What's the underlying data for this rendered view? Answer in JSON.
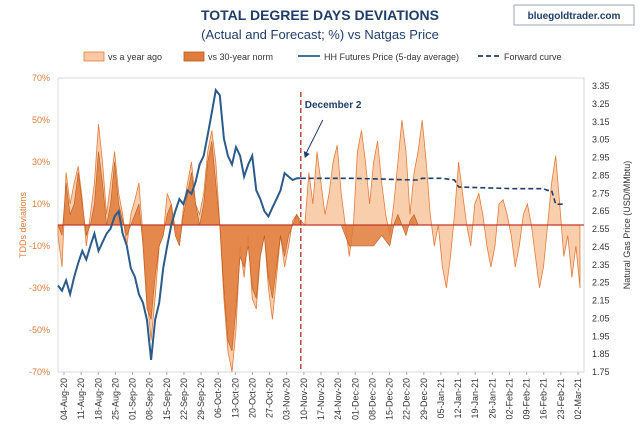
{
  "brand": "bluegoldtrader.com",
  "chart_data": {
    "type": "area",
    "title": "TOTAL DEGREE DAYS DEVIATIONS",
    "subtitle": "(Actual and Forecast; %) vs Natgas Price",
    "ylabel": "TDDs deviations",
    "y2label": "Natural Gas Price (USD/MMbtu)",
    "ylim": [
      -0.7,
      0.7
    ],
    "y2lim": [
      1.75,
      3.45
    ],
    "y_ticks": [
      "70%",
      "50%",
      "30%",
      "10%",
      "-10%",
      "-30%",
      "-50%",
      "-70%"
    ],
    "y2_ticks": [
      "3.35",
      "3.25",
      "3.15",
      "3.05",
      "2.95",
      "2.85",
      "2.75",
      "2.65",
      "2.55",
      "2.45",
      "2.35",
      "2.25",
      "2.15",
      "2.05",
      "1.95",
      "1.85",
      "1.75"
    ],
    "x_ticks": [
      "04-Aug-20",
      "11-Aug-20",
      "18-Aug-20",
      "25-Aug-20",
      "01-Sep-20",
      "08-Sep-20",
      "15-Sep-20",
      "22-Sep-20",
      "29-Sep-20",
      "06-Oct-20",
      "13-Oct-20",
      "20-Oct-20",
      "27-Oct-20",
      "03-Nov-20",
      "10-Nov-20",
      "17-Nov-20",
      "24-Nov-20",
      "01-Dec-20",
      "08-Dec-20",
      "15-Dec-20",
      "22-Dec-20",
      "29-Dec-20",
      "05-Jan-21",
      "12-Jan-21",
      "19-Jan-21",
      "26-Jan-21",
      "02-Feb-21",
      "09-Feb-21",
      "16-Feb-21",
      "23-Feb-21",
      "02-Mar-21"
    ],
    "legend": [
      "vs a year ago",
      "vs 30-year norm",
      "HH Futures Price (5-day average)",
      "Forward curve"
    ],
    "legend_position": "top",
    "annotation": {
      "text": "December 2",
      "x": 120
    },
    "colors": {
      "year_ago": "#f8c9a4",
      "year_ago_edge": "#e07b39",
      "norm": "#e07b39",
      "norm_edge": "#b85a1f",
      "price": "#2b5b8a",
      "forward": "#1f3d68",
      "zero": "#c0392b",
      "marker": "#c0392b"
    },
    "series": [
      {
        "name": "vs a year ago",
        "points": [
          [
            0,
            -0.05
          ],
          [
            2,
            -0.2
          ],
          [
            4,
            0.25
          ],
          [
            6,
            0.1
          ],
          [
            8,
            0.2
          ],
          [
            10,
            0.28
          ],
          [
            12,
            0.12
          ],
          [
            14,
            -0.1
          ],
          [
            16,
            0.05
          ],
          [
            18,
            0.2
          ],
          [
            20,
            0.48
          ],
          [
            22,
            0.3
          ],
          [
            24,
            0.05
          ],
          [
            26,
            0.2
          ],
          [
            28,
            0.35
          ],
          [
            30,
            0.15
          ],
          [
            32,
            0.05
          ],
          [
            34,
            -0.1
          ],
          [
            36,
            0.05
          ],
          [
            38,
            0.12
          ],
          [
            40,
            0.2
          ],
          [
            42,
            -0.05
          ],
          [
            44,
            -0.35
          ],
          [
            46,
            -0.55
          ],
          [
            48,
            -0.35
          ],
          [
            50,
            -0.1
          ],
          [
            52,
            -0.05
          ],
          [
            54,
            0.15
          ],
          [
            56,
            0.1
          ],
          [
            58,
            -0.02
          ],
          [
            60,
            -0.08
          ],
          [
            62,
            0.08
          ],
          [
            64,
            0.2
          ],
          [
            66,
            0.3
          ],
          [
            68,
            0.1
          ],
          [
            70,
            0.05
          ],
          [
            72,
            0.15
          ],
          [
            74,
            0.35
          ],
          [
            76,
            0.45
          ],
          [
            78,
            0.3
          ],
          [
            80,
            0.0
          ],
          [
            82,
            -0.35
          ],
          [
            84,
            -0.6
          ],
          [
            86,
            -0.7
          ],
          [
            88,
            -0.5
          ],
          [
            90,
            -0.1
          ],
          [
            92,
            -0.25
          ],
          [
            94,
            -0.05
          ],
          [
            96,
            -0.35
          ],
          [
            98,
            -0.4
          ],
          [
            100,
            -0.15
          ],
          [
            102,
            -0.05
          ],
          [
            104,
            -0.3
          ],
          [
            106,
            -0.45
          ],
          [
            108,
            -0.25
          ],
          [
            110,
            -0.05
          ],
          [
            112,
            -0.2
          ],
          [
            114,
            -0.1
          ],
          [
            116,
            0.02
          ],
          [
            118,
            0.05
          ],
          [
            120,
            0.02
          ],
          [
            122,
            0.0
          ],
          [
            124,
            0.25
          ],
          [
            126,
            0.1
          ],
          [
            128,
            0.35
          ],
          [
            130,
            0.2
          ],
          [
            132,
            0.05
          ],
          [
            134,
            0.15
          ],
          [
            136,
            0.3
          ],
          [
            138,
            0.38
          ],
          [
            140,
            0.15
          ],
          [
            142,
            0.0
          ],
          [
            144,
            -0.15
          ],
          [
            146,
            0.0
          ],
          [
            148,
            0.35
          ],
          [
            150,
            0.45
          ],
          [
            152,
            0.3
          ],
          [
            154,
            0.1
          ],
          [
            156,
            0.3
          ],
          [
            158,
            0.4
          ],
          [
            160,
            0.2
          ],
          [
            162,
            0.05
          ],
          [
            164,
            -0.05
          ],
          [
            166,
            0.1
          ],
          [
            168,
            0.3
          ],
          [
            170,
            0.5
          ],
          [
            172,
            0.35
          ],
          [
            174,
            0.05
          ],
          [
            176,
            0.25
          ],
          [
            178,
            0.35
          ],
          [
            180,
            0.5
          ],
          [
            182,
            0.3
          ],
          [
            184,
            0.05
          ],
          [
            186,
            -0.1
          ],
          [
            188,
            0.0
          ],
          [
            190,
            -0.2
          ],
          [
            192,
            -0.3
          ],
          [
            194,
            -0.15
          ],
          [
            196,
            0.05
          ],
          [
            198,
            0.3
          ],
          [
            200,
            0.15
          ],
          [
            202,
            0.0
          ],
          [
            204,
            -0.1
          ],
          [
            206,
            0.1
          ],
          [
            208,
            0.15
          ],
          [
            210,
            0.05
          ],
          [
            212,
            -0.1
          ],
          [
            214,
            -0.2
          ],
          [
            216,
            -0.1
          ],
          [
            218,
            0.1
          ],
          [
            220,
            0.12
          ],
          [
            222,
            0.05
          ],
          [
            224,
            -0.05
          ],
          [
            226,
            -0.2
          ],
          [
            228,
            -0.1
          ],
          [
            230,
            0.05
          ],
          [
            232,
            0.1
          ],
          [
            234,
            0.0
          ],
          [
            236,
            -0.15
          ],
          [
            238,
            -0.3
          ],
          [
            240,
            -0.2
          ],
          [
            242,
            0.0
          ],
          [
            244,
            0.2
          ],
          [
            246,
            0.33
          ],
          [
            248,
            0.1
          ],
          [
            250,
            -0.15
          ],
          [
            252,
            -0.05
          ],
          [
            254,
            -0.25
          ],
          [
            256,
            -0.1
          ],
          [
            258,
            -0.3
          ]
        ]
      },
      {
        "name": "vs 30-year norm",
        "points": [
          [
            0,
            0.0
          ],
          [
            2,
            -0.05
          ],
          [
            4,
            0.2
          ],
          [
            6,
            0.05
          ],
          [
            8,
            0.1
          ],
          [
            10,
            0.25
          ],
          [
            12,
            0.1
          ],
          [
            14,
            -0.05
          ],
          [
            16,
            0.0
          ],
          [
            18,
            0.1
          ],
          [
            20,
            0.35
          ],
          [
            22,
            0.2
          ],
          [
            24,
            0.0
          ],
          [
            26,
            0.1
          ],
          [
            28,
            0.3
          ],
          [
            30,
            0.1
          ],
          [
            32,
            0.02
          ],
          [
            34,
            -0.05
          ],
          [
            36,
            0.0
          ],
          [
            38,
            0.05
          ],
          [
            40,
            0.1
          ],
          [
            42,
            -0.1
          ],
          [
            44,
            -0.4
          ],
          [
            46,
            -0.45
          ],
          [
            48,
            -0.25
          ],
          [
            50,
            -0.1
          ],
          [
            52,
            -0.05
          ],
          [
            54,
            0.05
          ],
          [
            56,
            0.1
          ],
          [
            58,
            -0.05
          ],
          [
            60,
            -0.1
          ],
          [
            62,
            0.05
          ],
          [
            64,
            0.15
          ],
          [
            66,
            0.25
          ],
          [
            68,
            0.1
          ],
          [
            70,
            0.0
          ],
          [
            72,
            0.1
          ],
          [
            74,
            0.3
          ],
          [
            76,
            0.4
          ],
          [
            78,
            0.2
          ],
          [
            80,
            0.0
          ],
          [
            82,
            -0.3
          ],
          [
            84,
            -0.55
          ],
          [
            86,
            -0.6
          ],
          [
            88,
            -0.4
          ],
          [
            90,
            -0.15
          ],
          [
            92,
            -0.2
          ],
          [
            94,
            -0.1
          ],
          [
            96,
            -0.3
          ],
          [
            98,
            -0.35
          ],
          [
            100,
            -0.15
          ],
          [
            102,
            -0.05
          ],
          [
            104,
            -0.25
          ],
          [
            106,
            -0.35
          ],
          [
            108,
            -0.2
          ],
          [
            110,
            -0.05
          ],
          [
            112,
            -0.15
          ],
          [
            114,
            -0.05
          ],
          [
            116,
            0.0
          ],
          [
            118,
            0.05
          ],
          [
            120,
            0.0
          ],
          [
            140,
            0.0
          ],
          [
            144,
            -0.1
          ],
          [
            146,
            -0.1
          ],
          [
            150,
            -0.1
          ],
          [
            156,
            -0.1
          ],
          [
            160,
            -0.05
          ],
          [
            164,
            -0.1
          ],
          [
            166,
            0.0
          ],
          [
            168,
            0.05
          ],
          [
            170,
            0.0
          ],
          [
            172,
            -0.05
          ],
          [
            174,
            0.02
          ],
          [
            176,
            0.05
          ],
          [
            178,
            0.0
          ]
        ]
      },
      {
        "name": "HH Futures Price (5-day average)",
        "points": [
          [
            0,
            2.25
          ],
          [
            2,
            2.22
          ],
          [
            4,
            2.28
          ],
          [
            6,
            2.2
          ],
          [
            8,
            2.3
          ],
          [
            10,
            2.38
          ],
          [
            12,
            2.45
          ],
          [
            14,
            2.4
          ],
          [
            16,
            2.48
          ],
          [
            18,
            2.55
          ],
          [
            20,
            2.45
          ],
          [
            22,
            2.5
          ],
          [
            24,
            2.55
          ],
          [
            26,
            2.58
          ],
          [
            28,
            2.65
          ],
          [
            30,
            2.68
          ],
          [
            32,
            2.55
          ],
          [
            34,
            2.48
          ],
          [
            36,
            2.35
          ],
          [
            38,
            2.3
          ],
          [
            40,
            2.2
          ],
          [
            42,
            2.15
          ],
          [
            44,
            2.05
          ],
          [
            46,
            1.82
          ],
          [
            48,
            2.05
          ],
          [
            50,
            2.15
          ],
          [
            52,
            2.35
          ],
          [
            54,
            2.48
          ],
          [
            56,
            2.6
          ],
          [
            58,
            2.68
          ],
          [
            60,
            2.75
          ],
          [
            62,
            2.72
          ],
          [
            64,
            2.8
          ],
          [
            66,
            2.78
          ],
          [
            68,
            2.85
          ],
          [
            70,
            2.95
          ],
          [
            72,
            3.0
          ],
          [
            74,
            3.12
          ],
          [
            76,
            3.25
          ],
          [
            78,
            3.38
          ],
          [
            80,
            3.35
          ],
          [
            82,
            3.1
          ],
          [
            84,
            3.0
          ],
          [
            86,
            2.95
          ],
          [
            88,
            3.05
          ],
          [
            90,
            3.0
          ],
          [
            92,
            2.88
          ],
          [
            94,
            2.95
          ],
          [
            96,
            3.0
          ],
          [
            98,
            2.8
          ],
          [
            100,
            2.75
          ],
          [
            102,
            2.68
          ],
          [
            104,
            2.65
          ],
          [
            106,
            2.7
          ],
          [
            108,
            2.75
          ],
          [
            110,
            2.8
          ],
          [
            112,
            2.9
          ],
          [
            114,
            2.88
          ],
          [
            116,
            2.86
          ],
          [
            118,
            2.87
          ],
          [
            120,
            2.87
          ]
        ]
      },
      {
        "name": "Forward curve",
        "points": [
          [
            120,
            2.87
          ],
          [
            146,
            2.87
          ],
          [
            176,
            2.86
          ],
          [
            178,
            2.86
          ],
          [
            180,
            2.87
          ],
          [
            190,
            2.87
          ],
          [
            196,
            2.86
          ],
          [
            198,
            2.82
          ],
          [
            226,
            2.81
          ],
          [
            240,
            2.81
          ],
          [
            242,
            2.8
          ],
          [
            244,
            2.8
          ],
          [
            246,
            2.72
          ],
          [
            250,
            2.72
          ]
        ]
      }
    ]
  }
}
